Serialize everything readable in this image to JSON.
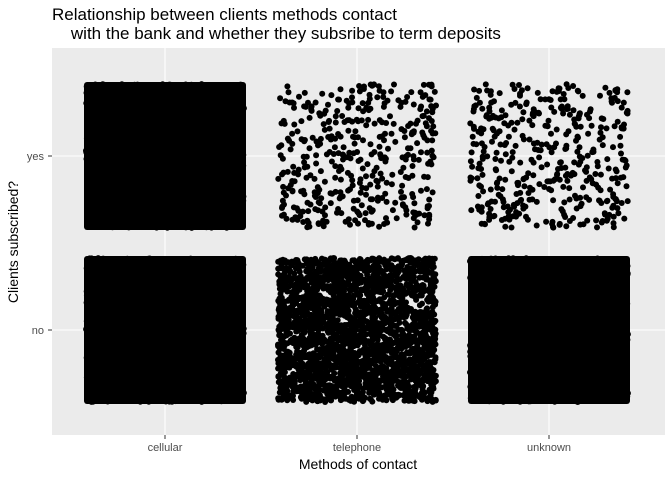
{
  "chart_data": {
    "type": "scatter",
    "subtype": "jitter",
    "title_lines": [
      "Relationship between clients methods contact",
      "    with the bank and whether they subsribe to term deposits"
    ],
    "xlabel": "Methods of contact",
    "ylabel": "Clients subscribed?",
    "x_categories": [
      "cellular",
      "telephone",
      "unknown"
    ],
    "y_categories": [
      "no",
      "yes"
    ],
    "point_color": "#000000",
    "panel_background": "#ebebeb",
    "grid": true,
    "legend": "none",
    "groups": [
      {
        "x": "cellular",
        "y": "yes",
        "density": "dense"
      },
      {
        "x": "telephone",
        "y": "yes",
        "density": "sparse"
      },
      {
        "x": "unknown",
        "y": "yes",
        "density": "sparse"
      },
      {
        "x": "cellular",
        "y": "no",
        "density": "dense"
      },
      {
        "x": "telephone",
        "y": "no",
        "density": "medium"
      },
      {
        "x": "unknown",
        "y": "no",
        "density": "dense"
      }
    ]
  }
}
